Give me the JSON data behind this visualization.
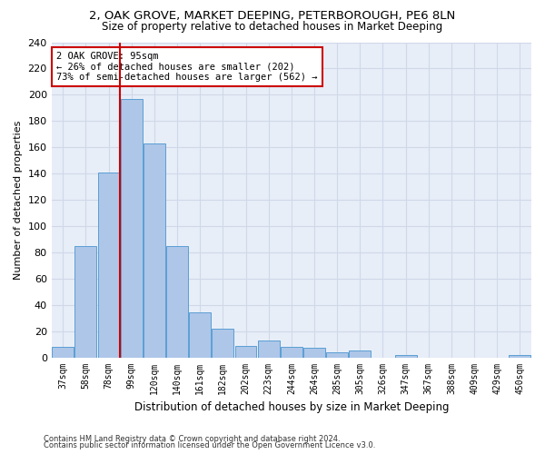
{
  "title1": "2, OAK GROVE, MARKET DEEPING, PETERBOROUGH, PE6 8LN",
  "title2": "Size of property relative to detached houses in Market Deeping",
  "xlabel": "Distribution of detached houses by size in Market Deeping",
  "ylabel": "Number of detached properties",
  "categories": [
    "37sqm",
    "58sqm",
    "78sqm",
    "99sqm",
    "120sqm",
    "140sqm",
    "161sqm",
    "182sqm",
    "202sqm",
    "223sqm",
    "244sqm",
    "264sqm",
    "285sqm",
    "305sqm",
    "326sqm",
    "347sqm",
    "367sqm",
    "388sqm",
    "409sqm",
    "429sqm",
    "450sqm"
  ],
  "values": [
    8,
    85,
    141,
    197,
    163,
    85,
    34,
    22,
    9,
    13,
    8,
    7,
    4,
    5,
    0,
    2,
    0,
    0,
    0,
    0,
    2
  ],
  "bar_color": "#aec6e8",
  "bar_edge_color": "#5a9fd4",
  "vline_x_idx": 2,
  "vline_color": "#cc0000",
  "annotation_text": "2 OAK GROVE: 95sqm\n← 26% of detached houses are smaller (202)\n73% of semi-detached houses are larger (562) →",
  "annotation_box_color": "#ffffff",
  "annotation_box_edge": "#cc0000",
  "grid_color": "#d0d8e8",
  "bg_color": "#e8eef8",
  "ylim": [
    0,
    240
  ],
  "yticks": [
    0,
    20,
    40,
    60,
    80,
    100,
    120,
    140,
    160,
    180,
    200,
    220,
    240
  ],
  "footnote1": "Contains HM Land Registry data © Crown copyright and database right 2024.",
  "footnote2": "Contains public sector information licensed under the Open Government Licence v3.0."
}
